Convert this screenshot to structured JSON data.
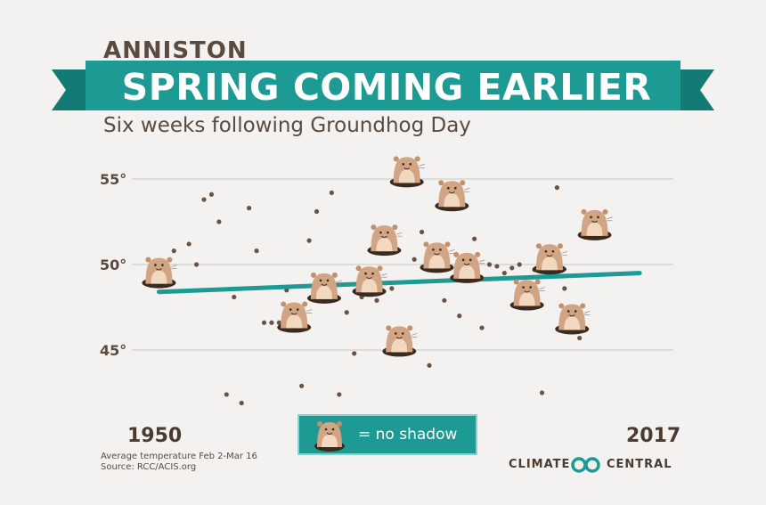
{
  "header": {
    "city": "ANNISTON",
    "title": "SPRING COMING EARLIER",
    "subtitle": "Six weeks following Groundhog Day"
  },
  "footer": {
    "year_start": "1950",
    "year_end": "2017",
    "note_line1": "Average temperature Feb 2-Mar 16",
    "note_line2": "Source: RCC/ACIS.org",
    "legend_label": "= no shadow",
    "brand_part1": "CLIMATE",
    "brand_part2": "CENTRAL",
    "legend_icon": "groundhog-icon",
    "brand_icon": "climate-central-logo"
  },
  "colors": {
    "background": "#f3f2f1",
    "banner": "#1e9a94",
    "banner_dark": "#137a74",
    "trend": "#1e9a94",
    "dots": "#6b5343",
    "text": "#5b4a3e",
    "groundhog": "#d1a483"
  },
  "chart_data": {
    "type": "scatter",
    "title": "",
    "xlabel": "",
    "ylabel": "",
    "xlim": [
      1950,
      2017
    ],
    "ylim": [
      40,
      57
    ],
    "ytick_values": [
      45,
      50,
      55
    ],
    "ytick_labels": [
      "45°",
      "50°",
      "55°"
    ],
    "grid": true,
    "point_styles": {
      "dot": "observation",
      "groundhog": "no shadow"
    },
    "points": [
      {
        "x": 1951,
        "y": 49.5,
        "s": "groundhog"
      },
      {
        "x": 1953,
        "y": 50.8,
        "s": "dot"
      },
      {
        "x": 1955,
        "y": 51.2,
        "s": "dot"
      },
      {
        "x": 1956,
        "y": 50.0,
        "s": "dot"
      },
      {
        "x": 1957,
        "y": 53.8,
        "s": "dot"
      },
      {
        "x": 1958,
        "y": 54.1,
        "s": "dot"
      },
      {
        "x": 1959,
        "y": 52.5,
        "s": "dot"
      },
      {
        "x": 1960,
        "y": 42.4,
        "s": "dot"
      },
      {
        "x": 1961,
        "y": 48.1,
        "s": "dot"
      },
      {
        "x": 1962,
        "y": 41.9,
        "s": "dot"
      },
      {
        "x": 1963,
        "y": 53.3,
        "s": "dot"
      },
      {
        "x": 1964,
        "y": 50.8,
        "s": "dot"
      },
      {
        "x": 1965,
        "y": 46.6,
        "s": "dot"
      },
      {
        "x": 1966,
        "y": 46.6,
        "s": "dot"
      },
      {
        "x": 1967,
        "y": 46.6,
        "s": "dot"
      },
      {
        "x": 1968,
        "y": 48.5,
        "s": "dot"
      },
      {
        "x": 1969,
        "y": 46.9,
        "s": "groundhog"
      },
      {
        "x": 1970,
        "y": 42.9,
        "s": "dot"
      },
      {
        "x": 1971,
        "y": 51.4,
        "s": "dot"
      },
      {
        "x": 1972,
        "y": 53.1,
        "s": "dot"
      },
      {
        "x": 1973,
        "y": 48.6,
        "s": "groundhog"
      },
      {
        "x": 1974,
        "y": 54.2,
        "s": "dot"
      },
      {
        "x": 1975,
        "y": 42.4,
        "s": "dot"
      },
      {
        "x": 1976,
        "y": 47.2,
        "s": "dot"
      },
      {
        "x": 1977,
        "y": 44.8,
        "s": "dot"
      },
      {
        "x": 1978,
        "y": 48.1,
        "s": "dot"
      },
      {
        "x": 1979,
        "y": 49.0,
        "s": "groundhog"
      },
      {
        "x": 1980,
        "y": 47.9,
        "s": "dot"
      },
      {
        "x": 1981,
        "y": 51.4,
        "s": "groundhog"
      },
      {
        "x": 1982,
        "y": 48.6,
        "s": "dot"
      },
      {
        "x": 1983,
        "y": 45.5,
        "s": "groundhog"
      },
      {
        "x": 1984,
        "y": 55.4,
        "s": "groundhog"
      },
      {
        "x": 1985,
        "y": 50.3,
        "s": "dot"
      },
      {
        "x": 1986,
        "y": 51.9,
        "s": "dot"
      },
      {
        "x": 1987,
        "y": 44.1,
        "s": "dot"
      },
      {
        "x": 1988,
        "y": 50.4,
        "s": "groundhog"
      },
      {
        "x": 1989,
        "y": 47.9,
        "s": "dot"
      },
      {
        "x": 1990,
        "y": 54.0,
        "s": "groundhog"
      },
      {
        "x": 1991,
        "y": 47.0,
        "s": "dot"
      },
      {
        "x": 1992,
        "y": 49.8,
        "s": "groundhog"
      },
      {
        "x": 1993,
        "y": 51.5,
        "s": "dot"
      },
      {
        "x": 1994,
        "y": 46.3,
        "s": "dot"
      },
      {
        "x": 1995,
        "y": 50.0,
        "s": "dot"
      },
      {
        "x": 1996,
        "y": 49.9,
        "s": "dot"
      },
      {
        "x": 1997,
        "y": 49.5,
        "s": "dot"
      },
      {
        "x": 1998,
        "y": 49.8,
        "s": "dot"
      },
      {
        "x": 1999,
        "y": 50.0,
        "s": "dot"
      },
      {
        "x": 2000,
        "y": 48.2,
        "s": "groundhog"
      },
      {
        "x": 2001,
        "y": 49.7,
        "s": "dot"
      },
      {
        "x": 2002,
        "y": 42.5,
        "s": "dot"
      },
      {
        "x": 2003,
        "y": 50.3,
        "s": "groundhog"
      },
      {
        "x": 2004,
        "y": 54.5,
        "s": "dot"
      },
      {
        "x": 2005,
        "y": 48.6,
        "s": "dot"
      },
      {
        "x": 2006,
        "y": 46.8,
        "s": "groundhog"
      },
      {
        "x": 2007,
        "y": 45.7,
        "s": "dot"
      },
      {
        "x": 2009,
        "y": 52.3,
        "s": "groundhog"
      }
    ],
    "trend": {
      "x": [
        1951,
        2015
      ],
      "y": [
        48.4,
        49.5
      ]
    }
  }
}
